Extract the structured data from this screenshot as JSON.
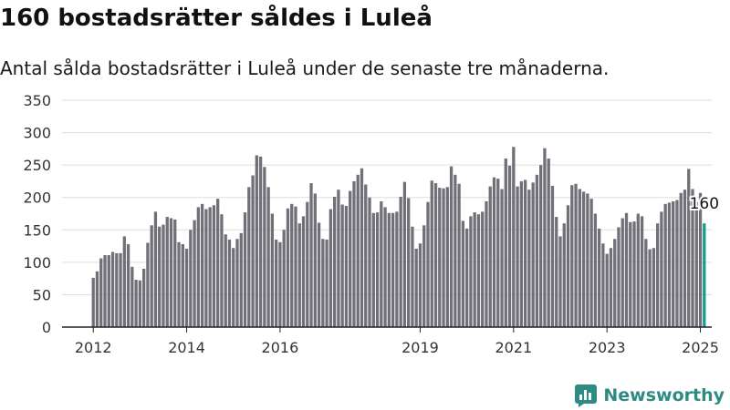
{
  "page": {
    "title": "160 bostadsrätter såldes i Luleå",
    "subtitle": "Antal sålda bostadsrätter i Luleå under de senaste tre månaderna.",
    "brand": "Newsworthy",
    "colors": {
      "bar": "#707078",
      "highlight": "#1a9a90",
      "brand": "#2e8b83",
      "grid": "#dddddd"
    }
  },
  "chart_data": {
    "type": "bar",
    "title": "160 bostadsrätter såldes i Luleå",
    "subtitle": "Antal sålda bostadsrätter i Luleå under de senaste tre månaderna.",
    "xlabel": "",
    "ylabel": "",
    "ylim": [
      0,
      350
    ],
    "yticks": [
      0,
      50,
      100,
      150,
      200,
      250,
      300,
      350
    ],
    "xticks": [
      "2012",
      "2014",
      "2016",
      "2019",
      "2021",
      "2023",
      "2025"
    ],
    "grid": true,
    "x_start": "2012-01",
    "frequency": "monthly",
    "annotation": {
      "text": "160",
      "index": 157
    },
    "highlight_index": 157,
    "values": [
      76,
      86,
      106,
      111,
      111,
      116,
      114,
      114,
      140,
      128,
      93,
      73,
      72,
      90,
      130,
      157,
      178,
      155,
      158,
      170,
      168,
      166,
      131,
      128,
      121,
      150,
      165,
      185,
      190,
      182,
      185,
      188,
      198,
      174,
      143,
      135,
      122,
      136,
      145,
      177,
      216,
      234,
      265,
      263,
      247,
      216,
      175,
      135,
      131,
      150,
      183,
      190,
      186,
      160,
      171,
      193,
      222,
      206,
      161,
      136,
      135,
      182,
      201,
      212,
      189,
      187,
      210,
      225,
      235,
      245,
      220,
      200,
      176,
      177,
      194,
      185,
      176,
      176,
      178,
      201,
      224,
      199,
      155,
      121,
      129,
      157,
      193,
      226,
      222,
      215,
      214,
      216,
      248,
      235,
      221,
      164,
      152,
      171,
      177,
      174,
      178,
      194,
      217,
      231,
      229,
      213,
      260,
      249,
      278,
      217,
      225,
      227,
      212,
      223,
      235,
      250,
      276,
      260,
      218,
      170,
      140,
      160,
      188,
      219,
      221,
      213,
      209,
      206,
      198,
      175,
      152,
      129,
      113,
      122,
      136,
      154,
      168,
      176,
      162,
      163,
      175,
      171,
      136,
      120,
      122,
      160,
      178,
      190,
      192,
      194,
      196,
      207,
      212,
      244,
      213,
      193,
      207,
      160
    ]
  }
}
